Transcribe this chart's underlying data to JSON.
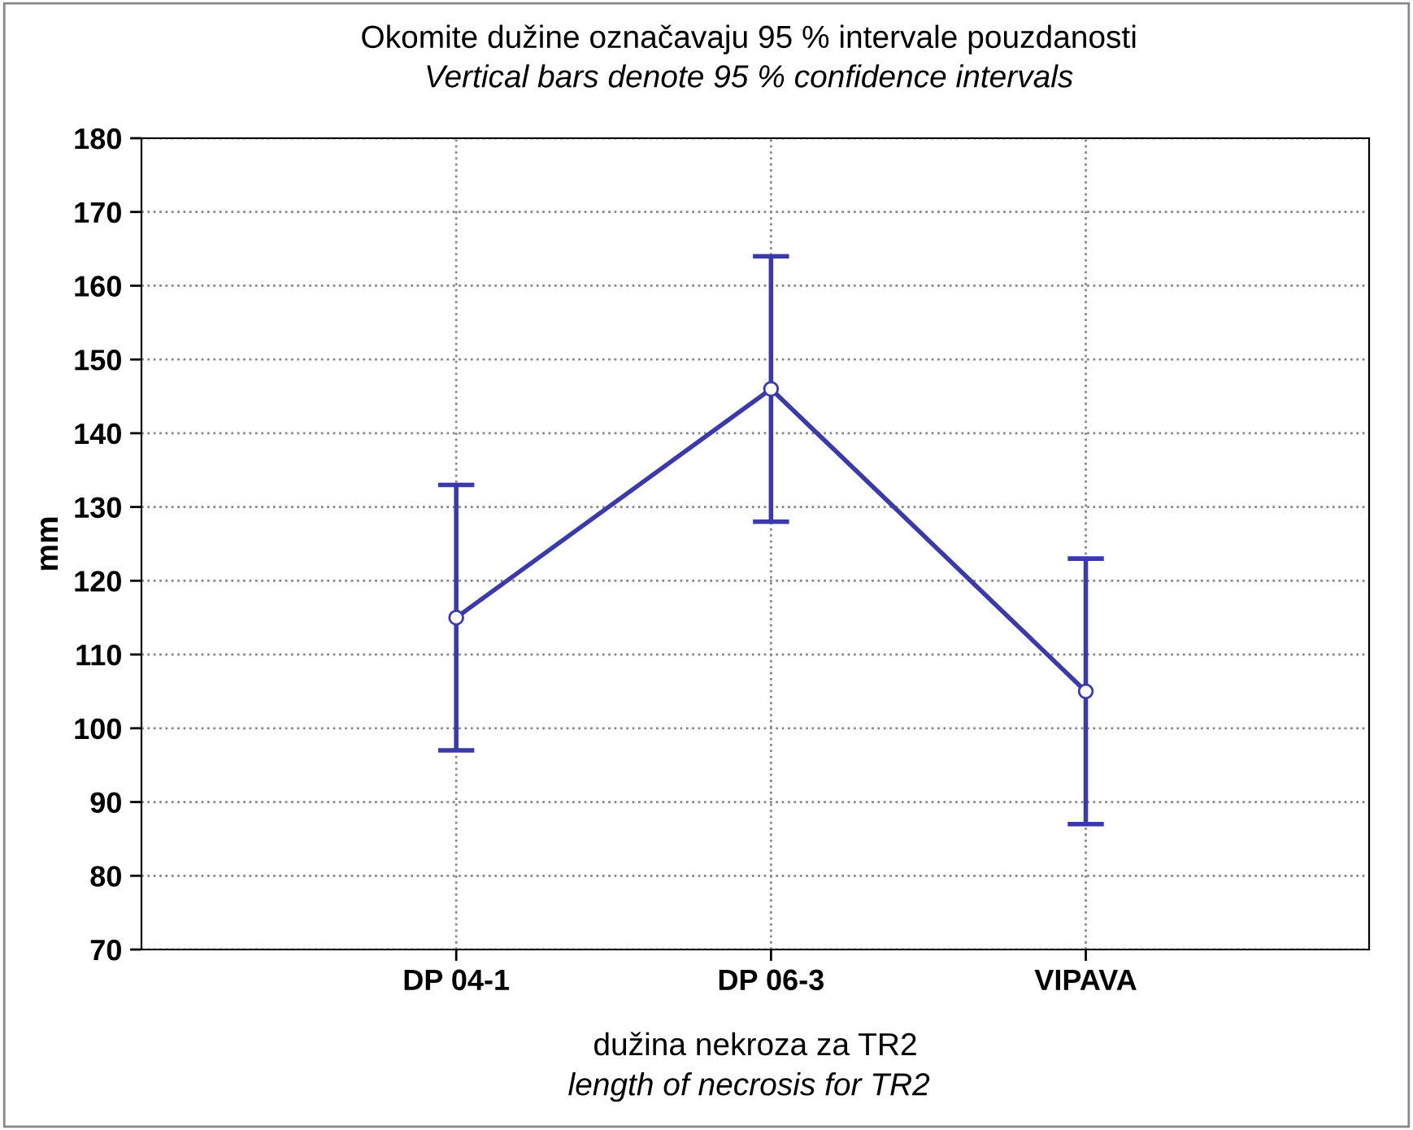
{
  "chart_data": {
    "type": "line",
    "title": "Okomite dužine označavaju 95 % intervale pouzdanosti",
    "subtitle": "Vertical bars denote 95 % confidence intervals",
    "xlabel": "dužina nekroza za TR2",
    "annotations": [
      "length of necrosis for TR2"
    ],
    "ylabel": "mm",
    "categories": [
      "DP 04-1",
      "DP 06-3",
      "VIPAVA"
    ],
    "series": [
      {
        "color": "#3a3aa8",
        "values": [
          115,
          146,
          105
        ],
        "errors": [
          18,
          18,
          18
        ]
      }
    ],
    "ylim": [
      70,
      180
    ],
    "yticks": [
      70,
      80,
      90,
      100,
      110,
      120,
      130,
      140,
      150,
      160,
      170,
      180
    ],
    "grid": true,
    "marker": "circle",
    "line_style": "solid",
    "legend": false
  }
}
